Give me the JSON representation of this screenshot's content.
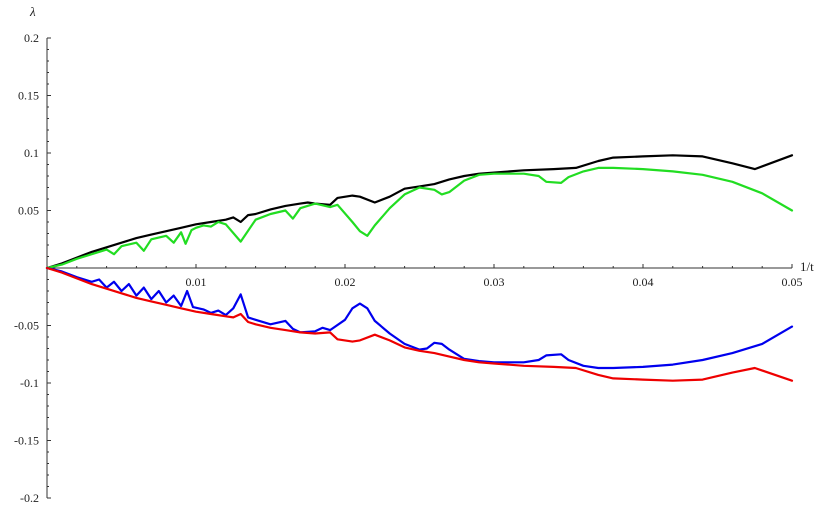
{
  "chart_data": {
    "type": "line",
    "xlabel": "1/t",
    "ylabel": "λ",
    "xlim": [
      0,
      0.05
    ],
    "ylim": [
      -0.2,
      0.2
    ],
    "x_ticks": [
      {
        "value": 0.01,
        "label": "0.01"
      },
      {
        "value": 0.02,
        "label": "0.02"
      },
      {
        "value": 0.03,
        "label": "0.03"
      },
      {
        "value": 0.04,
        "label": "0.04"
      },
      {
        "value": 0.05,
        "label": "0.05"
      }
    ],
    "y_ticks": [
      {
        "value": 0.2,
        "label": "0.2"
      },
      {
        "value": 0.15,
        "label": "0.15"
      },
      {
        "value": 0.1,
        "label": "0.1"
      },
      {
        "value": 0.05,
        "label": "0.05"
      },
      {
        "value": -0.05,
        "label": "-0.05"
      },
      {
        "value": -0.1,
        "label": "-0.1"
      },
      {
        "value": -0.15,
        "label": "-0.15"
      },
      {
        "value": -0.2,
        "label": "-0.2"
      }
    ],
    "grid": false,
    "series": [
      {
        "color": "#000000",
        "points": [
          [
            0,
            0
          ],
          [
            0.001,
            0.004
          ],
          [
            0.002,
            0.009
          ],
          [
            0.003,
            0.014
          ],
          [
            0.004,
            0.018
          ],
          [
            0.005,
            0.022
          ],
          [
            0.006,
            0.026
          ],
          [
            0.007,
            0.029
          ],
          [
            0.008,
            0.032
          ],
          [
            0.009,
            0.035
          ],
          [
            0.01,
            0.038
          ],
          [
            0.011,
            0.04
          ],
          [
            0.012,
            0.042
          ],
          [
            0.0125,
            0.044
          ],
          [
            0.013,
            0.04
          ],
          [
            0.0135,
            0.046
          ],
          [
            0.014,
            0.047
          ],
          [
            0.015,
            0.051
          ],
          [
            0.016,
            0.054
          ],
          [
            0.017,
            0.056
          ],
          [
            0.0175,
            0.057
          ],
          [
            0.018,
            0.056
          ],
          [
            0.019,
            0.055
          ],
          [
            0.0195,
            0.061
          ],
          [
            0.0205,
            0.063
          ],
          [
            0.021,
            0.062
          ],
          [
            0.022,
            0.057
          ],
          [
            0.023,
            0.062
          ],
          [
            0.024,
            0.069
          ],
          [
            0.025,
            0.071
          ],
          [
            0.026,
            0.073
          ],
          [
            0.027,
            0.077
          ],
          [
            0.028,
            0.08
          ],
          [
            0.029,
            0.082
          ],
          [
            0.03,
            0.083
          ],
          [
            0.032,
            0.085
          ],
          [
            0.034,
            0.086
          ],
          [
            0.0355,
            0.087
          ],
          [
            0.037,
            0.093
          ],
          [
            0.038,
            0.096
          ],
          [
            0.04,
            0.097
          ],
          [
            0.042,
            0.098
          ],
          [
            0.044,
            0.097
          ],
          [
            0.046,
            0.091
          ],
          [
            0.0475,
            0.086
          ],
          [
            0.05,
            0.098
          ]
        ]
      },
      {
        "color": "#22dd22",
        "points": [
          [
            0,
            0
          ],
          [
            0.001,
            0.003
          ],
          [
            0.002,
            0.008
          ],
          [
            0.003,
            0.012
          ],
          [
            0.004,
            0.016
          ],
          [
            0.0045,
            0.012
          ],
          [
            0.005,
            0.019
          ],
          [
            0.006,
            0.022
          ],
          [
            0.0065,
            0.015
          ],
          [
            0.007,
            0.025
          ],
          [
            0.008,
            0.028
          ],
          [
            0.0085,
            0.022
          ],
          [
            0.009,
            0.031
          ],
          [
            0.0093,
            0.021
          ],
          [
            0.0097,
            0.033
          ],
          [
            0.01,
            0.035
          ],
          [
            0.0105,
            0.037
          ],
          [
            0.011,
            0.036
          ],
          [
            0.0115,
            0.04
          ],
          [
            0.012,
            0.038
          ],
          [
            0.013,
            0.023
          ],
          [
            0.014,
            0.042
          ],
          [
            0.015,
            0.047
          ],
          [
            0.016,
            0.05
          ],
          [
            0.0165,
            0.043
          ],
          [
            0.017,
            0.052
          ],
          [
            0.018,
            0.056
          ],
          [
            0.019,
            0.053
          ],
          [
            0.0195,
            0.055
          ],
          [
            0.0205,
            0.04
          ],
          [
            0.021,
            0.032
          ],
          [
            0.0215,
            0.028
          ],
          [
            0.022,
            0.037
          ],
          [
            0.023,
            0.052
          ],
          [
            0.024,
            0.064
          ],
          [
            0.025,
            0.07
          ],
          [
            0.026,
            0.068
          ],
          [
            0.0265,
            0.064
          ],
          [
            0.027,
            0.066
          ],
          [
            0.028,
            0.076
          ],
          [
            0.029,
            0.081
          ],
          [
            0.03,
            0.082
          ],
          [
            0.032,
            0.082
          ],
          [
            0.033,
            0.08
          ],
          [
            0.0335,
            0.075
          ],
          [
            0.0345,
            0.074
          ],
          [
            0.035,
            0.079
          ],
          [
            0.036,
            0.084
          ],
          [
            0.037,
            0.087
          ],
          [
            0.038,
            0.087
          ],
          [
            0.04,
            0.086
          ],
          [
            0.042,
            0.084
          ],
          [
            0.044,
            0.081
          ],
          [
            0.046,
            0.075
          ],
          [
            0.048,
            0.065
          ],
          [
            0.05,
            0.05
          ]
        ]
      },
      {
        "color": "#0000ee",
        "points": [
          [
            0,
            0
          ],
          [
            0.001,
            -0.003
          ],
          [
            0.002,
            -0.008
          ],
          [
            0.003,
            -0.012
          ],
          [
            0.0035,
            -0.01
          ],
          [
            0.004,
            -0.017
          ],
          [
            0.0045,
            -0.012
          ],
          [
            0.005,
            -0.02
          ],
          [
            0.0055,
            -0.014
          ],
          [
            0.006,
            -0.024
          ],
          [
            0.0065,
            -0.017
          ],
          [
            0.007,
            -0.027
          ],
          [
            0.0075,
            -0.02
          ],
          [
            0.008,
            -0.03
          ],
          [
            0.0085,
            -0.024
          ],
          [
            0.009,
            -0.033
          ],
          [
            0.0094,
            -0.02
          ],
          [
            0.0098,
            -0.034
          ],
          [
            0.0105,
            -0.036
          ],
          [
            0.011,
            -0.039
          ],
          [
            0.0115,
            -0.037
          ],
          [
            0.012,
            -0.041
          ],
          [
            0.0125,
            -0.035
          ],
          [
            0.013,
            -0.023
          ],
          [
            0.0135,
            -0.043
          ],
          [
            0.014,
            -0.045
          ],
          [
            0.015,
            -0.049
          ],
          [
            0.016,
            -0.046
          ],
          [
            0.0165,
            -0.053
          ],
          [
            0.017,
            -0.056
          ],
          [
            0.018,
            -0.055
          ],
          [
            0.0185,
            -0.052
          ],
          [
            0.019,
            -0.054
          ],
          [
            0.02,
            -0.045
          ],
          [
            0.0205,
            -0.035
          ],
          [
            0.021,
            -0.031
          ],
          [
            0.0215,
            -0.035
          ],
          [
            0.022,
            -0.046
          ],
          [
            0.023,
            -0.057
          ],
          [
            0.024,
            -0.066
          ],
          [
            0.025,
            -0.071
          ],
          [
            0.0255,
            -0.07
          ],
          [
            0.026,
            -0.065
          ],
          [
            0.0265,
            -0.066
          ],
          [
            0.027,
            -0.071
          ],
          [
            0.028,
            -0.079
          ],
          [
            0.029,
            -0.081
          ],
          [
            0.03,
            -0.082
          ],
          [
            0.032,
            -0.082
          ],
          [
            0.033,
            -0.08
          ],
          [
            0.0335,
            -0.076
          ],
          [
            0.0345,
            -0.075
          ],
          [
            0.035,
            -0.08
          ],
          [
            0.036,
            -0.085
          ],
          [
            0.037,
            -0.087
          ],
          [
            0.038,
            -0.087
          ],
          [
            0.04,
            -0.086
          ],
          [
            0.042,
            -0.084
          ],
          [
            0.044,
            -0.08
          ],
          [
            0.046,
            -0.074
          ],
          [
            0.048,
            -0.066
          ],
          [
            0.05,
            -0.051
          ]
        ]
      },
      {
        "color": "#ee0000",
        "points": [
          [
            0,
            0
          ],
          [
            0.001,
            -0.004
          ],
          [
            0.002,
            -0.009
          ],
          [
            0.003,
            -0.014
          ],
          [
            0.004,
            -0.018
          ],
          [
            0.005,
            -0.022
          ],
          [
            0.006,
            -0.026
          ],
          [
            0.007,
            -0.029
          ],
          [
            0.008,
            -0.032
          ],
          [
            0.009,
            -0.035
          ],
          [
            0.01,
            -0.038
          ],
          [
            0.011,
            -0.04
          ],
          [
            0.012,
            -0.042
          ],
          [
            0.0125,
            -0.043
          ],
          [
            0.013,
            -0.04
          ],
          [
            0.0135,
            -0.047
          ],
          [
            0.014,
            -0.049
          ],
          [
            0.015,
            -0.052
          ],
          [
            0.016,
            -0.054
          ],
          [
            0.017,
            -0.056
          ],
          [
            0.018,
            -0.057
          ],
          [
            0.019,
            -0.056
          ],
          [
            0.0195,
            -0.062
          ],
          [
            0.0205,
            -0.064
          ],
          [
            0.021,
            -0.063
          ],
          [
            0.022,
            -0.058
          ],
          [
            0.023,
            -0.063
          ],
          [
            0.024,
            -0.069
          ],
          [
            0.025,
            -0.072
          ],
          [
            0.026,
            -0.074
          ],
          [
            0.027,
            -0.077
          ],
          [
            0.028,
            -0.08
          ],
          [
            0.029,
            -0.082
          ],
          [
            0.03,
            -0.083
          ],
          [
            0.032,
            -0.085
          ],
          [
            0.034,
            -0.086
          ],
          [
            0.0355,
            -0.087
          ],
          [
            0.037,
            -0.093
          ],
          [
            0.038,
            -0.096
          ],
          [
            0.04,
            -0.097
          ],
          [
            0.042,
            -0.098
          ],
          [
            0.044,
            -0.097
          ],
          [
            0.046,
            -0.091
          ],
          [
            0.0475,
            -0.087
          ],
          [
            0.05,
            -0.098
          ]
        ]
      }
    ]
  }
}
